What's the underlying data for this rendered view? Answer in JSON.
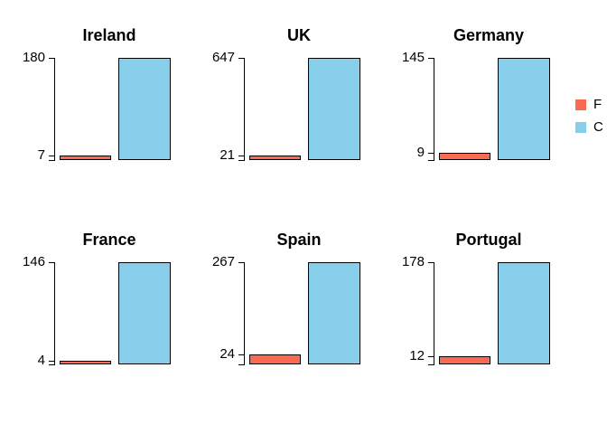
{
  "window": {
    "background": "#FFFFFF"
  },
  "legend": {
    "entries": [
      {
        "label": "F",
        "color": "#FA6A50"
      },
      {
        "label": "C",
        "color": "#87CEEB"
      }
    ],
    "position": "right-edge, text clipped by image border"
  },
  "chart_data": {
    "type": "bar",
    "layout": {
      "rows": 2,
      "cols": 3,
      "style": "faceted small-multiple barplots, two bars per facet, y-axis ticks at min and max values only",
      "grid": "off",
      "legend_position": "right"
    },
    "series": [
      {
        "name": "F",
        "color": "#FA6A50"
      },
      {
        "name": "C",
        "color": "#87CEEB"
      }
    ],
    "facets": [
      {
        "title": "Ireland",
        "values": [
          7,
          180
        ],
        "ytick_labels": [
          "7",
          "180"
        ],
        "ylim": [
          0,
          180
        ]
      },
      {
        "title": "UK",
        "values": [
          21,
          647
        ],
        "ytick_labels": [
          "21",
          "647"
        ],
        "ylim": [
          0,
          647
        ]
      },
      {
        "title": "Germany",
        "values": [
          9,
          145
        ],
        "ytick_labels": [
          "9",
          "145"
        ],
        "ylim": [
          0,
          145
        ]
      },
      {
        "title": "France",
        "values": [
          4,
          146
        ],
        "ytick_labels": [
          "4",
          "146"
        ],
        "ylim": [
          0,
          146
        ]
      },
      {
        "title": "Spain",
        "values": [
          24,
          267
        ],
        "ytick_labels": [
          "24",
          "267"
        ],
        "ylim": [
          0,
          267
        ]
      },
      {
        "title": "Portugal",
        "values": [
          12,
          178
        ],
        "ytick_labels": [
          "12",
          "178"
        ],
        "ylim": [
          0,
          178
        ]
      }
    ]
  }
}
